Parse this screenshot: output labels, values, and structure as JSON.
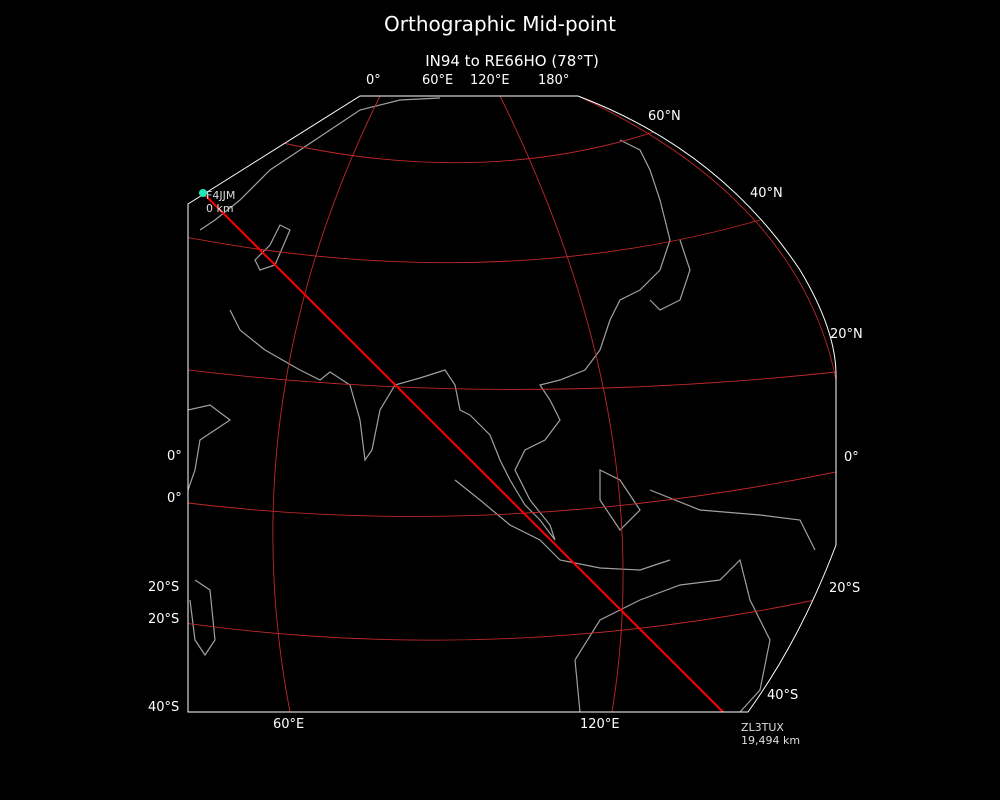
{
  "title": "Orthographic Mid-point",
  "subtitle": "IN94 to RE66HO (78°T)",
  "colors": {
    "background": "#000000",
    "gridline": "#c0282a",
    "path": "#ff0000",
    "coastline": "#a0a0a0",
    "boundary": "#ffffff",
    "start_marker": "#1de9b6"
  },
  "ticks": {
    "top": [
      "0°",
      "60°E",
      "120°E",
      "180°"
    ],
    "right": [
      "60°N",
      "40°N",
      "20°N",
      "0°",
      "20°S",
      "40°S"
    ],
    "left": [
      "0°",
      "0°",
      "20°S",
      "20°S",
      "40°S"
    ],
    "bottom": [
      "60°E",
      "120°E"
    ]
  },
  "start": {
    "call": "F4JJM",
    "distance": "0 km"
  },
  "end": {
    "call": "ZL3TUX",
    "distance": "19,494 km"
  }
}
